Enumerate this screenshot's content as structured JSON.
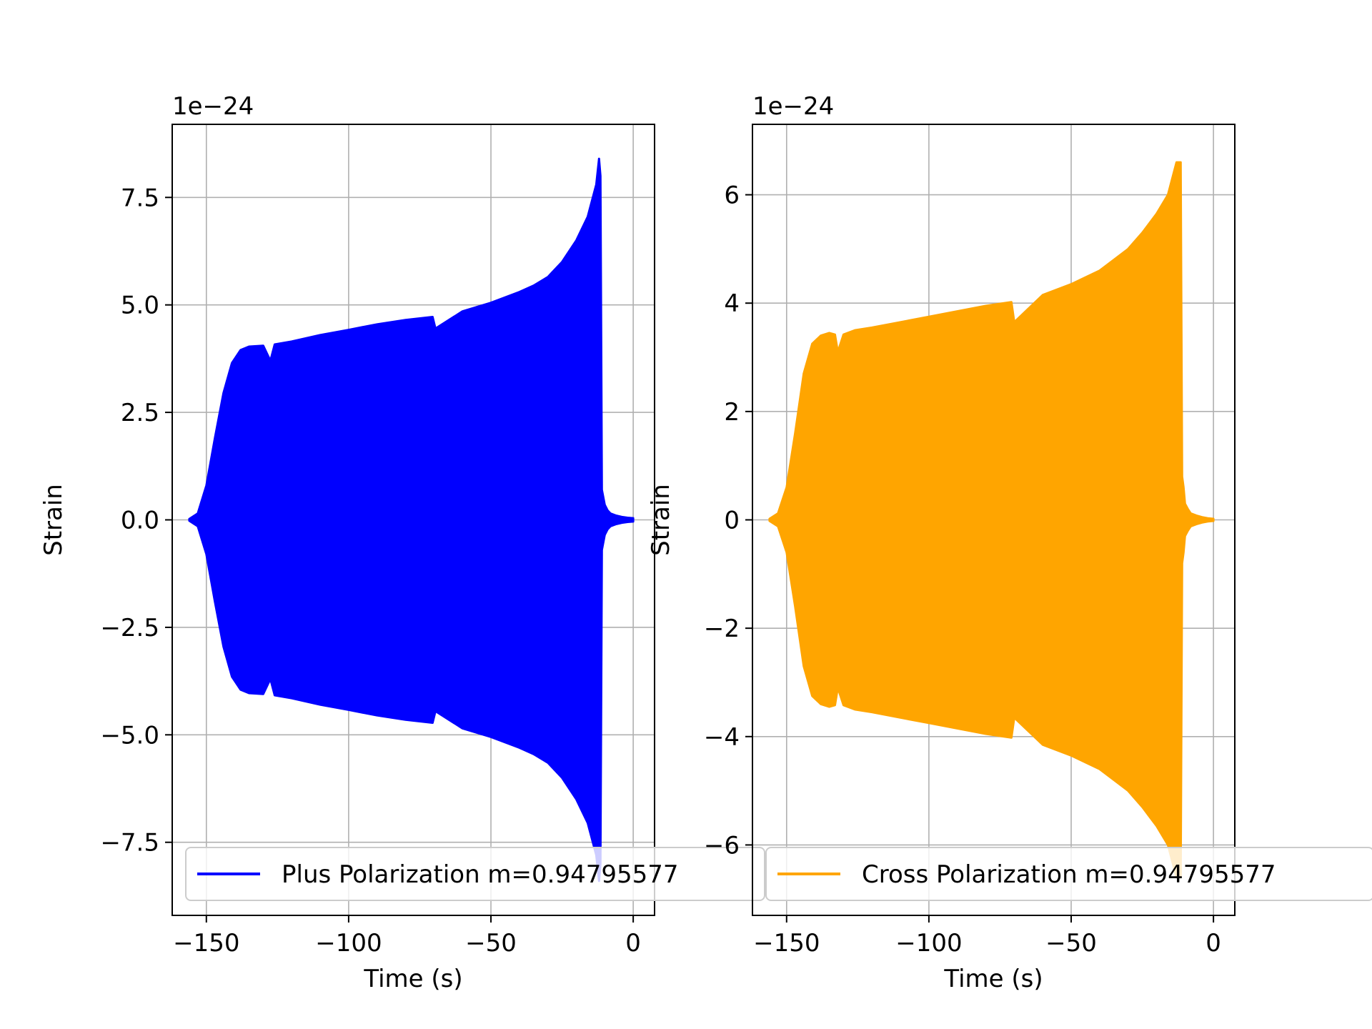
{
  "chart_data": [
    {
      "type": "line",
      "panel": "left",
      "offset_text": "1e−24",
      "xlabel": "Time (s)",
      "ylabel": "Strain",
      "xlim": [
        -162,
        7.5
      ],
      "ylim": [
        -9.2,
        9.2
      ],
      "xticks": [
        -150,
        -100,
        -50,
        0
      ],
      "xtick_labels": [
        "−150",
        "−100",
        "−50",
        "0"
      ],
      "yticks": [
        -7.5,
        -5.0,
        -2.5,
        0.0,
        2.5,
        5.0,
        7.5
      ],
      "ytick_labels": [
        "−7.5",
        "−5.0",
        "−2.5",
        "0.0",
        "2.5",
        "5.0",
        "7.5"
      ],
      "grid": true,
      "legend_position": "lower center",
      "series": [
        {
          "name": "Plus Polarization m=0.94795577",
          "color": "#0000ff",
          "envelope": {
            "t": [
              -156,
              -153,
              -150,
              -147,
              -144,
              -141,
              -138,
              -135,
              -130,
              -127.5,
              -126,
              -120,
              -110,
              -100,
              -90,
              -80,
              -70.5,
              -69.5,
              -60,
              -50,
              -40,
              -35,
              -30,
              -25,
              -20,
              -16,
              -13,
              -12,
              -11.5,
              -11,
              -10,
              -9,
              -8,
              -6,
              -4,
              -2,
              0
            ],
            "amplitude": [
              0.02,
              0.15,
              0.8,
              1.9,
              2.95,
              3.65,
              3.95,
              4.03,
              4.05,
              3.7,
              4.08,
              4.15,
              4.3,
              4.42,
              4.55,
              4.65,
              4.72,
              4.45,
              4.85,
              5.05,
              5.3,
              5.45,
              5.65,
              6.0,
              6.5,
              7.05,
              7.8,
              8.4,
              8.0,
              0.7,
              0.35,
              0.22,
              0.15,
              0.1,
              0.07,
              0.05,
              0.04
            ]
          }
        }
      ]
    },
    {
      "type": "line",
      "panel": "right",
      "offset_text": "1e−24",
      "xlabel": "Time (s)",
      "ylabel": "Strain",
      "xlim": [
        -162,
        7.5
      ],
      "ylim": [
        -7.3,
        7.3
      ],
      "xticks": [
        -150,
        -100,
        -50,
        0
      ],
      "xtick_labels": [
        "−150",
        "−100",
        "−50",
        "0"
      ],
      "yticks": [
        -6,
        -4,
        -2,
        0,
        2,
        4,
        6
      ],
      "ytick_labels": [
        "−6",
        "−4",
        "−2",
        "0",
        "2",
        "4",
        "6"
      ],
      "grid": true,
      "legend_position": "lower center",
      "series": [
        {
          "name": "Cross Polarization m=0.94795577",
          "color": "#ffa500",
          "envelope": {
            "t": [
              -156,
              -153,
              -150,
              -147,
              -144,
              -141,
              -138,
              -135,
              -133,
              -132,
              -130,
              -126,
              -120,
              -110,
              -100,
              -90,
              -80,
              -71,
              -70,
              -60,
              -50,
              -40,
              -35,
              -30,
              -25,
              -20,
              -16,
              -13,
              -11.5,
              -11,
              -10.5,
              -10,
              -9,
              -8,
              -6,
              -4,
              -2,
              0
            ],
            "amplitude": [
              0.02,
              0.12,
              0.6,
              1.6,
              2.7,
              3.25,
              3.4,
              3.45,
              3.42,
              3.1,
              3.42,
              3.5,
              3.55,
              3.65,
              3.75,
              3.85,
              3.95,
              4.02,
              3.65,
              4.15,
              4.35,
              4.6,
              4.8,
              5.0,
              5.3,
              5.65,
              6.0,
              6.6,
              6.6,
              0.8,
              0.6,
              0.3,
              0.2,
              0.12,
              0.08,
              0.05,
              0.03,
              0.02
            ]
          }
        }
      ]
    }
  ]
}
